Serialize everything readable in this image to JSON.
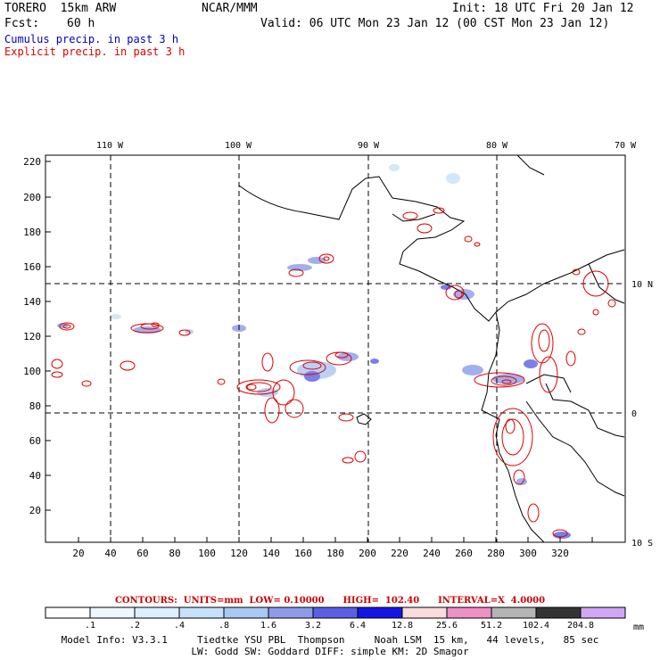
{
  "header": {
    "model": "TORERO  15km ARW",
    "org": "NCAR/MMM",
    "init": "Init: 18 UTC Fri 20 Jan 12",
    "fcst_label": "Fcst:",
    "fcst_hours": "60 h",
    "valid": "Valid: 06 UTC Mon 23 Jan 12 (00 CST Mon 23 Jan 12)",
    "cumulus_label": "Cumulus precip. in past 3 h",
    "explicit_label": "Explicit precip. in past 3 h"
  },
  "colors": {
    "cumulus": "#0000cc",
    "explicit": "#dd0000"
  },
  "map": {
    "top_lon_labels": [
      "110 W",
      "100 W",
      "90 W",
      "80 W",
      "70 W"
    ],
    "right_lat_labels": [
      "10 N",
      "0",
      "10 S"
    ],
    "y_ticks": [
      "220",
      "200",
      "180",
      "160",
      "140",
      "120",
      "100",
      "80",
      "60",
      "40",
      "20"
    ],
    "x_ticks": [
      "20",
      "40",
      "60",
      "80",
      "100",
      "120",
      "140",
      "160",
      "180",
      "200",
      "220",
      "240",
      "260",
      "280",
      "300",
      "320"
    ]
  },
  "legend": {
    "contours_text": "CONTOURS:  UNITS=mm  LOW= 0.10000      HIGH=  102.40      INTERVAL=X  4.0000",
    "levels": [
      ".1",
      ".2",
      ".4",
      ".8",
      "1.6",
      "3.2",
      "6.4",
      "12.8",
      "25.6",
      "51.2",
      "102.4",
      "204.8"
    ],
    "unit": "mm",
    "colors": [
      "#ffffff",
      "#eef6ff",
      "#dcefff",
      "#c6e2fa",
      "#a8c8f2",
      "#8c9cea",
      "#5a60e6",
      "#1414e6",
      "#fadcdc",
      "#f090c4",
      "#b4b4b4",
      "#343434",
      "#d2a6f6"
    ]
  },
  "footer": {
    "line1": "Model Info: V3.3.1     Tiedtke YSU PBL  Thompson     Noah LSM  15 km,   44 levels,   85 sec",
    "line2": "LW: Godd SW: Goddard DIFF: simple KM: 2D Smagor"
  }
}
